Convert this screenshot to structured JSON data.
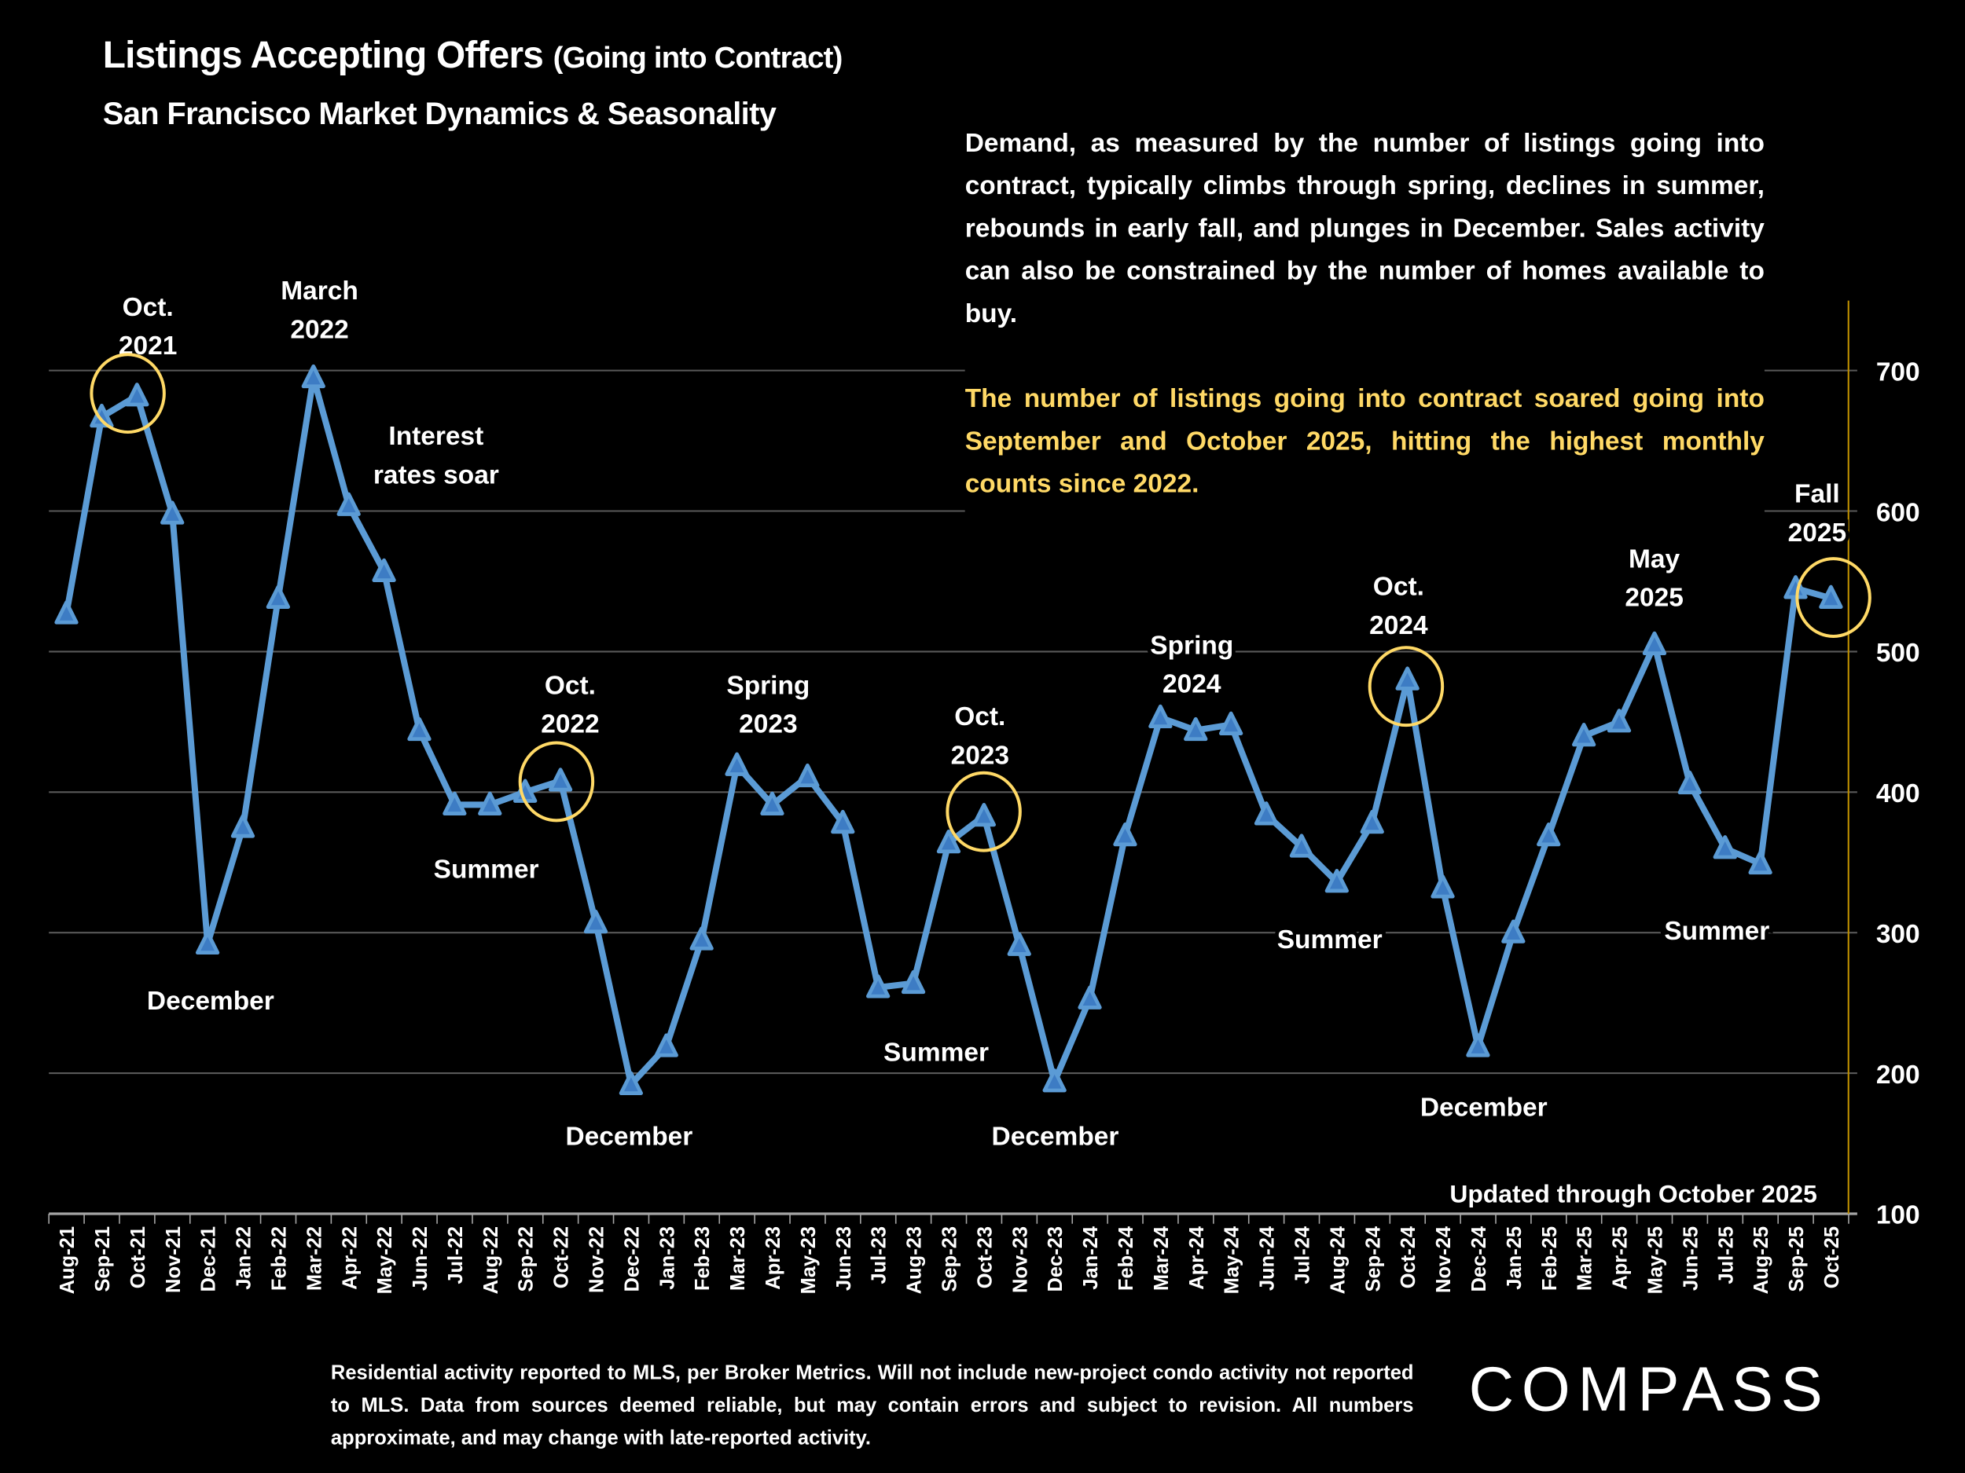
{
  "header": {
    "title": "Listings Accepting Offers",
    "title_suffix": "(Going into Contract)",
    "subtitle": "San Francisco Market Dynamics & Seasonality"
  },
  "description": {
    "paragraph": "Demand, as measured by the number of listings going into contract, typically climbs through spring, declines in summer, rebounds in early fall, and plunges in December. Sales activity can also be constrained by the number of homes available to  buy.",
    "highlight": "The number of listings going into contract soared going into September and October 2025, hitting the highest monthly counts since 2022."
  },
  "footnote": "Residential activity reported to MLS, per Broker Metrics. Will not include new-project condo activity not reported to MLS. Data from sources deemed reliable, but may contain errors and subject to revision. All numbers approximate, and may change with late-reported activity.",
  "logo": "COMPASS",
  "colors": {
    "line": "#5b9bd5",
    "marker_fill": "#3d7cc4",
    "highlight": "#ffd966",
    "circle": "#ffd966",
    "grid": "#595959",
    "right_axis": "#bf9000"
  },
  "chart_data": {
    "type": "line",
    "title": "Listings Accepting Offers (Going into Contract)",
    "subtitle": "San Francisco Market Dynamics & Seasonality",
    "xlabel": "",
    "ylabel": "",
    "ylim": [
      100,
      750
    ],
    "yticks": [
      100,
      200,
      300,
      400,
      500,
      600,
      700
    ],
    "y_axis_side": "right",
    "grid": true,
    "marker": "triangle",
    "categories": [
      "Aug-21",
      "Sep-21",
      "Oct-21",
      "Nov-21",
      "Dec-21",
      "Jan-22",
      "Feb-22",
      "Mar-22",
      "Apr-22",
      "May-22",
      "Jun-22",
      "Jul-22",
      "Aug-22",
      "Sep-22",
      "Oct-22",
      "Nov-22",
      "Dec-22",
      "Jan-23",
      "Feb-23",
      "Mar-23",
      "Apr-23",
      "May-23",
      "Jun-23",
      "Jul-23",
      "Aug-23",
      "Sep-23",
      "Oct-23",
      "Nov-23",
      "Dec-23",
      "Jan-24",
      "Feb-24",
      "Mar-24",
      "Apr-24",
      "May-24",
      "Jun-24",
      "Jul-24",
      "Aug-24",
      "Sep-24",
      "Oct-24",
      "Nov-24",
      "Dec-24",
      "Jan-25",
      "Feb-25",
      "Mar-25",
      "Apr-25",
      "May-25",
      "Jun-25",
      "Jul-25",
      "Aug-25",
      "Sep-25",
      "Oct-25"
    ],
    "values": [
      527,
      667,
      682,
      598,
      292,
      375,
      538,
      695,
      604,
      557,
      444,
      391,
      391,
      400,
      408,
      307,
      192,
      219,
      295,
      419,
      391,
      411,
      378,
      261,
      264,
      364,
      383,
      291,
      194,
      253,
      369,
      453,
      444,
      448,
      384,
      361,
      336,
      378,
      480,
      332,
      219,
      300,
      369,
      440,
      450,
      505,
      406,
      360,
      349,
      545,
      538
    ],
    "annotations": [
      {
        "lines": [
          "Oct.",
          "2021"
        ],
        "circled": true
      },
      {
        "lines": [
          "March",
          "2022"
        ]
      },
      {
        "lines": [
          "Interest",
          "rates soar"
        ]
      },
      {
        "lines": [
          "December"
        ]
      },
      {
        "lines": [
          "Summer"
        ]
      },
      {
        "lines": [
          "Oct.",
          "2022"
        ],
        "circled": true
      },
      {
        "lines": [
          "December"
        ]
      },
      {
        "lines": [
          "Spring",
          "2023"
        ]
      },
      {
        "lines": [
          "Summer"
        ]
      },
      {
        "lines": [
          "Oct.",
          "2023"
        ],
        "circled": true
      },
      {
        "lines": [
          "December"
        ]
      },
      {
        "lines": [
          "Spring",
          "2024"
        ]
      },
      {
        "lines": [
          "Summer"
        ]
      },
      {
        "lines": [
          "Oct.",
          "2024"
        ],
        "circled": true
      },
      {
        "lines": [
          "December"
        ]
      },
      {
        "lines": [
          "May",
          "2025"
        ]
      },
      {
        "lines": [
          "Summer"
        ]
      },
      {
        "lines": [
          "Fall",
          "2025"
        ],
        "circled": true
      }
    ],
    "note": "Updated through October 2025"
  }
}
